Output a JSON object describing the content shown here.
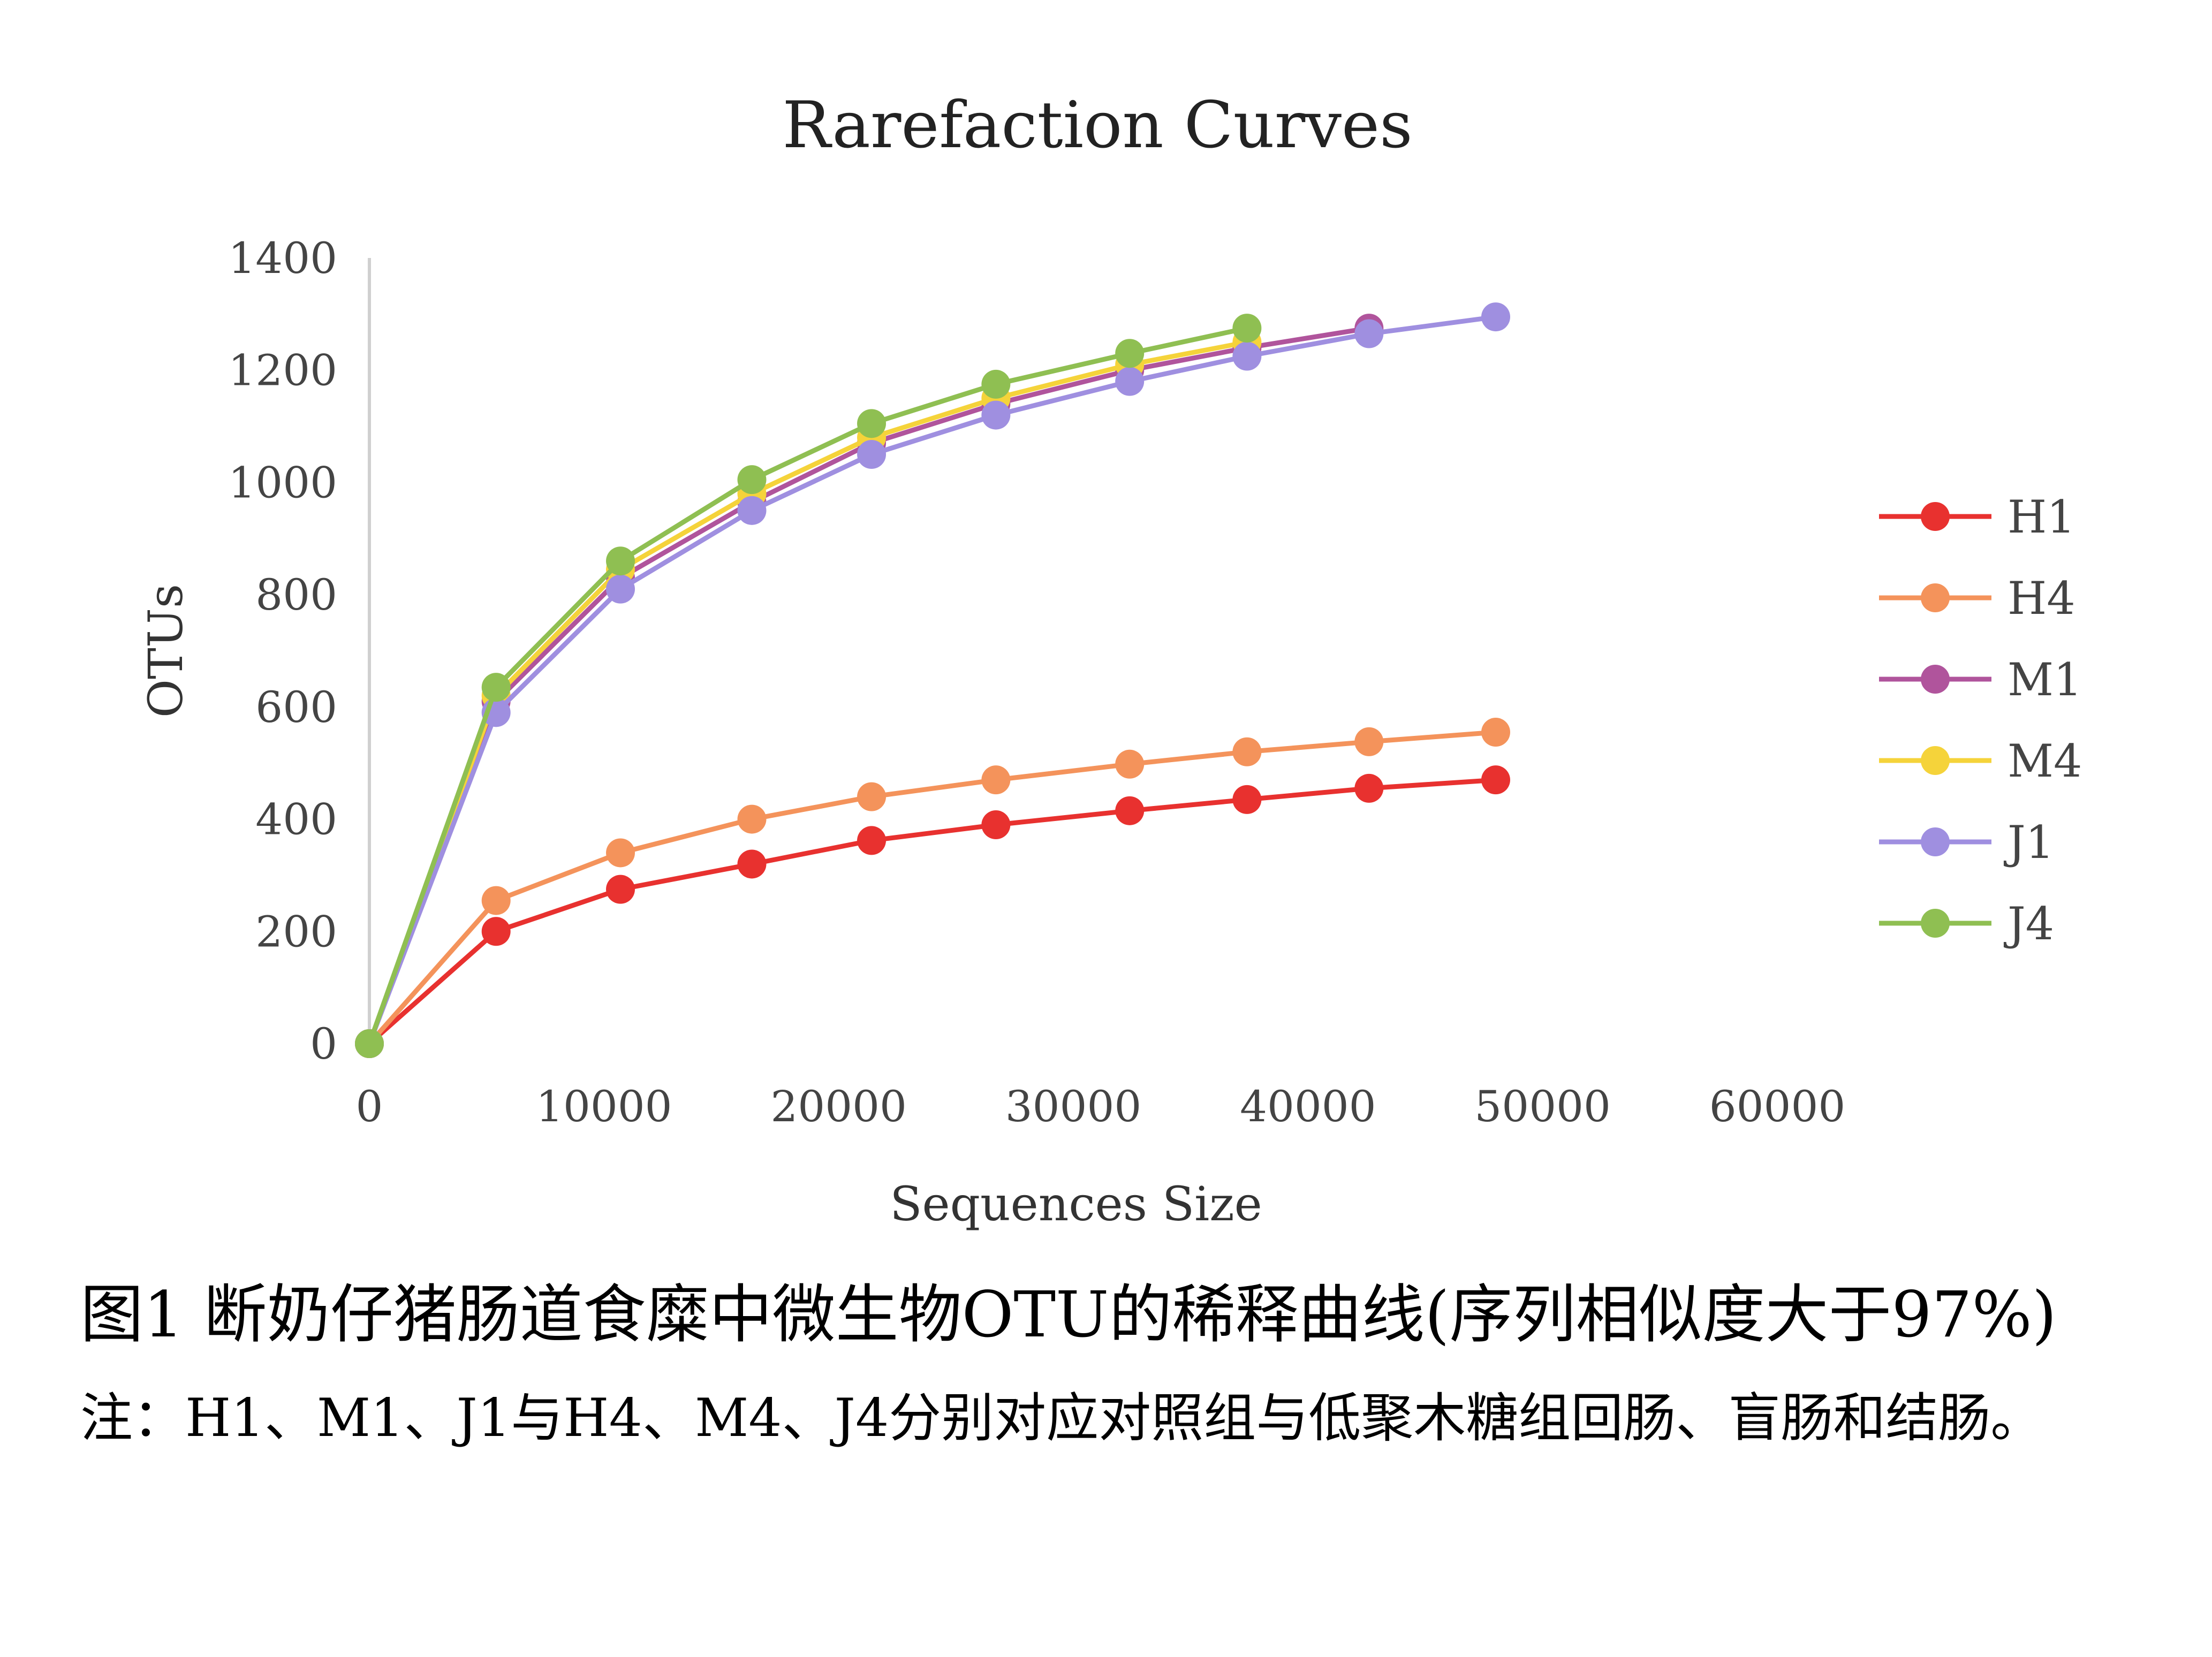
{
  "caption": {
    "figure": "图1 断奶仔猪肠道食糜中微生物OTU的稀释曲线(序列相似度大于97%)",
    "note": "注：H1、M1、J1与H4、M4、J4分别对应对照组与低聚木糖组回肠、盲肠和结肠。"
  },
  "chart_data": {
    "type": "line",
    "title": "Rarefaction Curves",
    "xlabel": "Sequences Size",
    "ylabel": "OTUs",
    "xlim": [
      0,
      60000
    ],
    "ylim": [
      0,
      1400
    ],
    "xticks": [
      0,
      10000,
      20000,
      30000,
      40000,
      50000,
      60000
    ],
    "yticks": [
      0,
      200,
      400,
      600,
      800,
      1000,
      1200,
      1400
    ],
    "grid": false,
    "legend_position": "right",
    "series": [
      {
        "name": "H1",
        "color": "#e8312f",
        "marker": "circle",
        "x": [
          0,
          5400,
          10700,
          16300,
          21400,
          26700,
          32400,
          37400,
          42600,
          48000
        ],
        "y": [
          0,
          200,
          275,
          320,
          362,
          390,
          415,
          435,
          455,
          470
        ]
      },
      {
        "name": "H4",
        "color": "#f4935b",
        "marker": "circle",
        "x": [
          0,
          5400,
          10700,
          16300,
          21400,
          26700,
          32400,
          37400,
          42600,
          48000
        ],
        "y": [
          0,
          255,
          340,
          400,
          440,
          470,
          498,
          520,
          538,
          555
        ]
      },
      {
        "name": "M1",
        "color": "#b0549c",
        "marker": "circle",
        "x": [
          0,
          5400,
          10700,
          16300,
          21400,
          26700,
          32400,
          37400,
          42600
        ],
        "y": [
          0,
          610,
          830,
          965,
          1070,
          1140,
          1200,
          1240,
          1275
        ]
      },
      {
        "name": "M4",
        "color": "#f5d33a",
        "marker": "circle",
        "x": [
          0,
          5400,
          10700,
          16300,
          21400,
          26700,
          32400,
          37400
        ],
        "y": [
          0,
          620,
          845,
          980,
          1080,
          1150,
          1210,
          1250
        ]
      },
      {
        "name": "J1",
        "color": "#9f8fe0",
        "marker": "circle",
        "x": [
          0,
          5400,
          10700,
          16300,
          21400,
          26700,
          32400,
          37400,
          42600,
          48000
        ],
        "y": [
          0,
          590,
          810,
          950,
          1050,
          1120,
          1180,
          1225,
          1265,
          1295
        ]
      },
      {
        "name": "J4",
        "color": "#8fbf52",
        "marker": "circle",
        "x": [
          0,
          5400,
          10700,
          16300,
          21400,
          26700,
          32400,
          37400
        ],
        "y": [
          0,
          635,
          860,
          1005,
          1105,
          1175,
          1230,
          1275
        ]
      }
    ]
  }
}
